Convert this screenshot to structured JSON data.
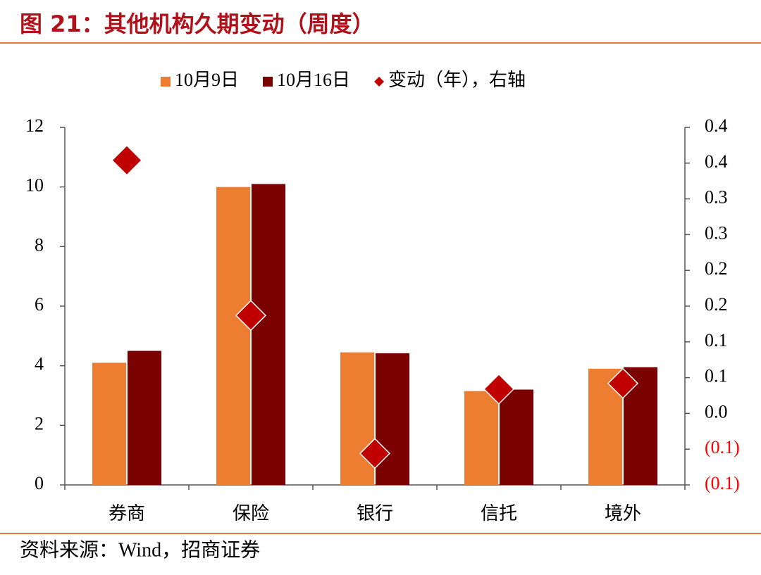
{
  "chart_data": {
    "type": "bar",
    "title": "图 21：其他机构久期变动（周度）",
    "source": "资料来源：Wind，招商证券",
    "categories": [
      "券商",
      "保险",
      "银行",
      "信托",
      "境外"
    ],
    "series": [
      {
        "name": "10月9日",
        "color": "#ed7d31",
        "values": [
          4.1,
          10.0,
          4.45,
          3.15,
          3.9
        ]
      },
      {
        "name": "10月16日",
        "color": "#7b0000",
        "values": [
          4.5,
          10.1,
          4.42,
          3.2,
          3.95
        ]
      },
      {
        "name": "变动（年），右轴",
        "color": "#c00000",
        "type": "scatter",
        "axis": "y2",
        "values": [
          0.354,
          0.137,
          -0.056,
          0.034,
          0.042
        ]
      }
    ],
    "ylim": [
      0,
      12
    ],
    "yticks": [
      0,
      2,
      4,
      6,
      8,
      10,
      12
    ],
    "y2lim": [
      -0.1,
      0.4
    ],
    "y2ticks": [
      {
        "value": -0.1,
        "label": "(0.1)"
      },
      {
        "value": -0.05,
        "label": "(0.1)"
      },
      {
        "value": 0,
        "label": "0.0"
      },
      {
        "value": 0.05,
        "label": "0.1"
      },
      0.1,
      {
        "value": 0.15,
        "label": "0.2"
      },
      0.2,
      {
        "value": 0.25,
        "label": "0.3"
      },
      0.3,
      {
        "value": 0.35,
        "label": "0.4"
      },
      0.4
    ],
    "legend": "top",
    "grid": false
  }
}
